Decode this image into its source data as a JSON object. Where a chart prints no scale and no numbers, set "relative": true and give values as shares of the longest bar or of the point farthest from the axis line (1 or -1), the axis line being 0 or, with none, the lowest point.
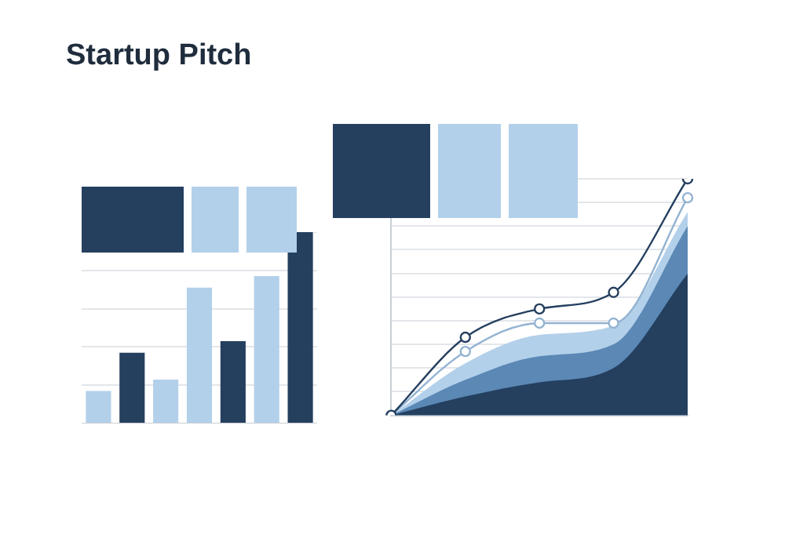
{
  "chart_data": [
    {
      "type": "bar",
      "title": "Startup Pitch",
      "categories": [
        null,
        null,
        null,
        null,
        null,
        null,
        null
      ],
      "values": [
        0.17,
        0.37,
        0.23,
        0.71,
        0.43,
        0.77,
        1
      ],
      "colors": [
        "#b3d0ea",
        "#253f5f",
        "#b3d0ea",
        "#b3d0ea",
        "#253f5f",
        "#b3d0ea",
        "#253f5f"
      ],
      "relative": true,
      "grid": "y"
    },
    {
      "type": "area",
      "categories": [
        null,
        null,
        null,
        null,
        null
      ],
      "relative": true,
      "grid": "y",
      "series": [
        {
          "type": "area",
          "color": "#b3d0ea",
          "values": [
            0,
            0.22,
            0.34,
            0.38,
            0.86
          ]
        },
        {
          "type": "area",
          "color": "#5b88b5",
          "values": [
            0,
            0.15,
            0.25,
            0.3,
            0.8
          ]
        },
        {
          "type": "area",
          "color": "#253f5f",
          "values": [
            0,
            0.08,
            0.14,
            0.2,
            0.6
          ]
        },
        {
          "type": "line",
          "color": "#93b3d2",
          "marker": "circle",
          "values": [
            0,
            0.27,
            0.39,
            0.39,
            0.92
          ]
        },
        {
          "type": "line",
          "color": "#253f5f",
          "marker": "circle",
          "values": [
            0,
            0.33,
            0.45,
            0.52,
            1
          ]
        }
      ]
    }
  ]
}
